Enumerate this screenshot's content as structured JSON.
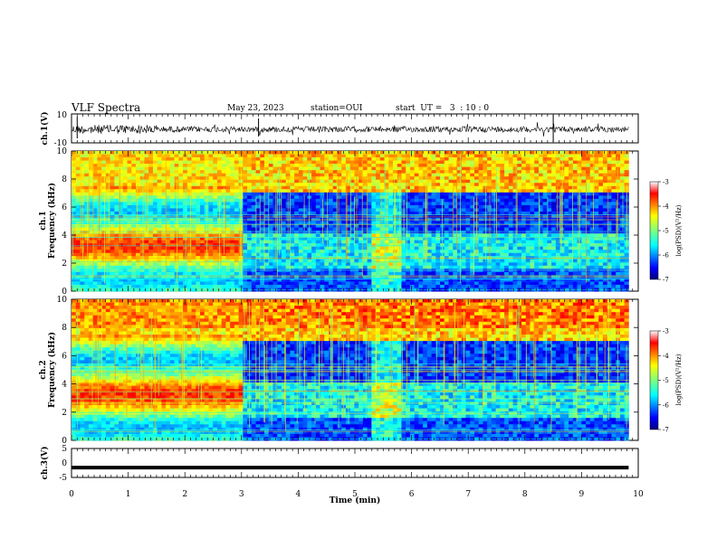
{
  "header": {
    "title": "VLF Spectra",
    "date": "May 23, 2023",
    "station": "station=OUI",
    "start": "start  UT =   3  : 10 : 0"
  },
  "chart_data": [
    {
      "type": "line",
      "panel": "ch1-waveform",
      "ylabel": "ch.1(V)",
      "ylim": [
        -10,
        10
      ],
      "yticks": [
        "10",
        "-10"
      ],
      "series": [
        {
          "values_summary": "noise-like waveform centered near 0 V, amplitude about 1-2 V, occasional spikes"
        }
      ]
    },
    {
      "type": "heatmap",
      "panel": "ch1-spectrogram",
      "ylabel": "ch.1\nFrequency (kHz)",
      "ylim": [
        0,
        10
      ],
      "yticks": [
        "0",
        "2",
        "4",
        "6",
        "8",
        "10"
      ],
      "colorbar": {
        "label": "log(PSD)(V²/Hz)",
        "range": [
          -7,
          -3
        ],
        "ticks": [
          "-3",
          "-4",
          "-5",
          "-6",
          "-7"
        ]
      },
      "features": [
        {
          "t_min": 0,
          "t_max": 3,
          "description": "strong broadband emissions with horizontal bands across 0-10 kHz"
        },
        {
          "t_min": 3,
          "t_max": 9.8,
          "description": "quieter background 4-6 kHz, intense 7-10 kHz, vertical sferic lines"
        }
      ]
    },
    {
      "type": "heatmap",
      "panel": "ch2-spectrogram",
      "ylabel": "ch.2\nFrequency (kHz)",
      "ylim": [
        0,
        10
      ],
      "yticks": [
        "0",
        "2",
        "4",
        "6",
        "8",
        "10"
      ],
      "colorbar": {
        "label": "log(PSD)(V²/Hz)",
        "range": [
          -7,
          -3
        ],
        "ticks": [
          "-3",
          "-4",
          "-5",
          "-6",
          "-7"
        ]
      }
    },
    {
      "type": "line",
      "panel": "ch3-waveform",
      "ylabel": "ch.3(V)",
      "ylim": [
        -5,
        5
      ],
      "yticks": [
        "5",
        "0",
        "-5"
      ],
      "series": [
        {
          "values_summary": "flat thick line at about -1.6 V"
        }
      ]
    }
  ],
  "xaxis": {
    "label": "Time  (min)",
    "xlim": [
      0,
      10
    ],
    "ticks": [
      "0",
      "1",
      "2",
      "3",
      "4",
      "5",
      "6",
      "7",
      "8",
      "9",
      "10"
    ],
    "data_end": 9.83
  },
  "colors": {
    "jet": [
      "#00007f",
      "#0000ff",
      "#007fff",
      "#00ffff",
      "#7fff7f",
      "#ffff00",
      "#ff7f00",
      "#ff0000",
      "#7f0000"
    ]
  }
}
